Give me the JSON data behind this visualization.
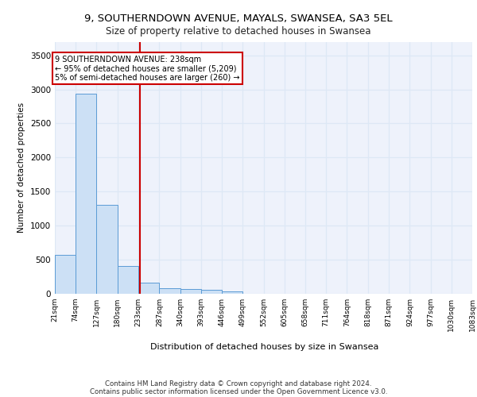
{
  "title1": "9, SOUTHERNDOWN AVENUE, MAYALS, SWANSEA, SA3 5EL",
  "title2": "Size of property relative to detached houses in Swansea",
  "xlabel": "Distribution of detached houses by size in Swansea",
  "ylabel": "Number of detached properties",
  "footer1": "Contains HM Land Registry data © Crown copyright and database right 2024.",
  "footer2": "Contains public sector information licensed under the Open Government Licence v3.0.",
  "annotation_line1": "9 SOUTHERNDOWN AVENUE: 238sqm",
  "annotation_line2": "← 95% of detached houses are smaller (5,209)",
  "annotation_line3": "5% of semi-detached houses are larger (260) →",
  "property_size": 238,
  "bin_edges": [
    21,
    74,
    127,
    180,
    233,
    287,
    340,
    393,
    446,
    499,
    552,
    605,
    658,
    711,
    764,
    818,
    871,
    924,
    977,
    1030,
    1083
  ],
  "bar_values": [
    570,
    2940,
    1310,
    410,
    160,
    85,
    65,
    55,
    40,
    0,
    0,
    0,
    0,
    0,
    0,
    0,
    0,
    0,
    0,
    0
  ],
  "bar_color": "#cce0f5",
  "bar_edge_color": "#5b9bd5",
  "highlight_color": "#cc0000",
  "grid_color": "#dde8f5",
  "bg_color": "#eef2fb",
  "box_color": "#cc0000",
  "yticks": [
    0,
    500,
    1000,
    1500,
    2000,
    2500,
    3000,
    3500
  ],
  "ylim": [
    0,
    3700
  ]
}
